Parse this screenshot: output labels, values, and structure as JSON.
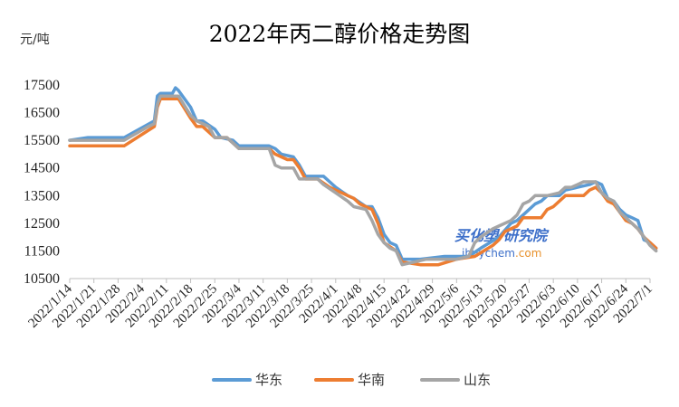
{
  "chart_data": {
    "type": "line",
    "title": "2022年丙二醇价格走势图",
    "ylabel": "元/吨",
    "xlabel": "",
    "ylim": [
      10500,
      17500
    ],
    "yticks": [
      10500,
      11500,
      12500,
      13500,
      14500,
      15500,
      16500,
      17500
    ],
    "x_tick_labels": [
      "2022/1/14",
      "2022/1/21",
      "2022/1/28",
      "2022/2/4",
      "2022/2/11",
      "2022/2/18",
      "2022/2/25",
      "2022/3/4",
      "2022/3/11",
      "2022/3/18",
      "2022/3/25",
      "2022/4/1",
      "2022/4/8",
      "2022/4/15",
      "2022/4/22",
      "2022/4/29",
      "2022/5/6",
      "2022/5/13",
      "2022/5/20",
      "2022/5/27",
      "2022/6/3",
      "2022/6/10",
      "2022/6/17",
      "2022/6/24",
      "2022/7/1"
    ],
    "grid": false,
    "legend_position": "bottom",
    "watermark": {
      "line1": "买化塑·研究院",
      "line2a": "ibuychem",
      "line2b": ".com"
    },
    "series": [
      {
        "name": "华东",
        "color": "#5b9bd5",
        "points": [
          [
            0,
            15500
          ],
          [
            3,
            15600
          ],
          [
            9,
            15600
          ],
          [
            14,
            16200
          ],
          [
            14.5,
            17100
          ],
          [
            15,
            17200
          ],
          [
            17,
            17200
          ],
          [
            17.5,
            17400
          ],
          [
            18,
            17300
          ],
          [
            20,
            16700
          ],
          [
            21,
            16200
          ],
          [
            22,
            16200
          ],
          [
            24,
            15900
          ],
          [
            25,
            15600
          ],
          [
            27,
            15500
          ],
          [
            28,
            15300
          ],
          [
            33,
            15300
          ],
          [
            34,
            15200
          ],
          [
            35,
            15000
          ],
          [
            37,
            14900
          ],
          [
            38,
            14600
          ],
          [
            39,
            14200
          ],
          [
            42,
            14200
          ],
          [
            43,
            14000
          ],
          [
            44,
            13800
          ],
          [
            46,
            13500
          ],
          [
            47,
            13400
          ],
          [
            49,
            13100
          ],
          [
            50,
            13100
          ],
          [
            51,
            12700
          ],
          [
            52,
            12100
          ],
          [
            53,
            11800
          ],
          [
            54,
            11700
          ],
          [
            55,
            11200
          ],
          [
            58,
            11200
          ],
          [
            62,
            11300
          ],
          [
            66,
            11300
          ],
          [
            68,
            11600
          ],
          [
            71,
            12000
          ],
          [
            73,
            12500
          ],
          [
            74,
            12600
          ],
          [
            75,
            12800
          ],
          [
            77,
            13200
          ],
          [
            78,
            13300
          ],
          [
            79,
            13500
          ],
          [
            81,
            13500
          ],
          [
            82,
            13700
          ],
          [
            84,
            13800
          ],
          [
            86,
            13900
          ],
          [
            87,
            14000
          ],
          [
            88,
            13900
          ],
          [
            89,
            13400
          ],
          [
            90,
            13300
          ],
          [
            91,
            13000
          ],
          [
            92,
            12800
          ],
          [
            93,
            12700
          ],
          [
            94,
            12600
          ],
          [
            95,
            11900
          ],
          [
            96,
            11800
          ],
          [
            97,
            11600
          ]
        ]
      },
      {
        "name": "华南",
        "color": "#ed7d31",
        "points": [
          [
            0,
            15300
          ],
          [
            4,
            15300
          ],
          [
            9,
            15300
          ],
          [
            14,
            16000
          ],
          [
            14.5,
            16700
          ],
          [
            15,
            17000
          ],
          [
            18,
            17000
          ],
          [
            20,
            16300
          ],
          [
            21,
            16000
          ],
          [
            22,
            16000
          ],
          [
            24,
            15600
          ],
          [
            26,
            15600
          ],
          [
            28,
            15200
          ],
          [
            33,
            15200
          ],
          [
            34,
            15000
          ],
          [
            36,
            14800
          ],
          [
            37,
            14800
          ],
          [
            38,
            14500
          ],
          [
            39,
            14100
          ],
          [
            41,
            14100
          ],
          [
            43,
            13800
          ],
          [
            45,
            13600
          ],
          [
            46,
            13500
          ],
          [
            47,
            13400
          ],
          [
            48,
            13200
          ],
          [
            50,
            13000
          ],
          [
            51,
            12500
          ],
          [
            52,
            11800
          ],
          [
            54,
            11500
          ],
          [
            55,
            11100
          ],
          [
            58,
            11000
          ],
          [
            61,
            11000
          ],
          [
            64,
            11200
          ],
          [
            67,
            11300
          ],
          [
            70,
            11700
          ],
          [
            71,
            11900
          ],
          [
            72,
            12200
          ],
          [
            74,
            12400
          ],
          [
            75,
            12700
          ],
          [
            78,
            12700
          ],
          [
            79,
            13000
          ],
          [
            80,
            13100
          ],
          [
            82,
            13500
          ],
          [
            85,
            13500
          ],
          [
            86,
            13700
          ],
          [
            87,
            13800
          ],
          [
            88,
            13600
          ],
          [
            89,
            13300
          ],
          [
            90,
            13200
          ],
          [
            91,
            12900
          ],
          [
            92,
            12600
          ],
          [
            93,
            12500
          ],
          [
            94,
            12300
          ],
          [
            95,
            12000
          ],
          [
            96,
            11800
          ],
          [
            97,
            11600
          ]
        ]
      },
      {
        "name": "山东",
        "color": "#a5a5a5",
        "points": [
          [
            0,
            15500
          ],
          [
            9,
            15500
          ],
          [
            13,
            16000
          ],
          [
            14,
            16100
          ],
          [
            14.5,
            16800
          ],
          [
            15,
            17100
          ],
          [
            18,
            17100
          ],
          [
            20,
            16400
          ],
          [
            21,
            16200
          ],
          [
            23,
            16000
          ],
          [
            24,
            15600
          ],
          [
            26,
            15600
          ],
          [
            27,
            15400
          ],
          [
            28,
            15200
          ],
          [
            33,
            15200
          ],
          [
            34,
            14600
          ],
          [
            35,
            14500
          ],
          [
            37,
            14500
          ],
          [
            38,
            14100
          ],
          [
            41,
            14100
          ],
          [
            42,
            13900
          ],
          [
            44,
            13600
          ],
          [
            46,
            13300
          ],
          [
            47,
            13100
          ],
          [
            49,
            13000
          ],
          [
            50,
            12600
          ],
          [
            51,
            12100
          ],
          [
            52,
            11800
          ],
          [
            53,
            11600
          ],
          [
            54,
            11500
          ],
          [
            55,
            11000
          ],
          [
            57,
            11100
          ],
          [
            59,
            11200
          ],
          [
            64,
            11200
          ],
          [
            66,
            11300
          ],
          [
            67,
            11800
          ],
          [
            68,
            12000
          ],
          [
            70,
            12300
          ],
          [
            71,
            12400
          ],
          [
            73,
            12600
          ],
          [
            74,
            12800
          ],
          [
            75,
            13200
          ],
          [
            76,
            13300
          ],
          [
            77,
            13500
          ],
          [
            79,
            13500
          ],
          [
            81,
            13600
          ],
          [
            82,
            13800
          ],
          [
            83,
            13800
          ],
          [
            84,
            13900
          ],
          [
            85,
            14000
          ],
          [
            87,
            14000
          ],
          [
            88,
            13600
          ],
          [
            89,
            13400
          ],
          [
            90,
            13300
          ],
          [
            91,
            12900
          ],
          [
            92,
            12700
          ],
          [
            93,
            12500
          ],
          [
            94,
            12300
          ],
          [
            95,
            12000
          ],
          [
            96,
            11700
          ],
          [
            97,
            11500
          ]
        ]
      }
    ]
  }
}
